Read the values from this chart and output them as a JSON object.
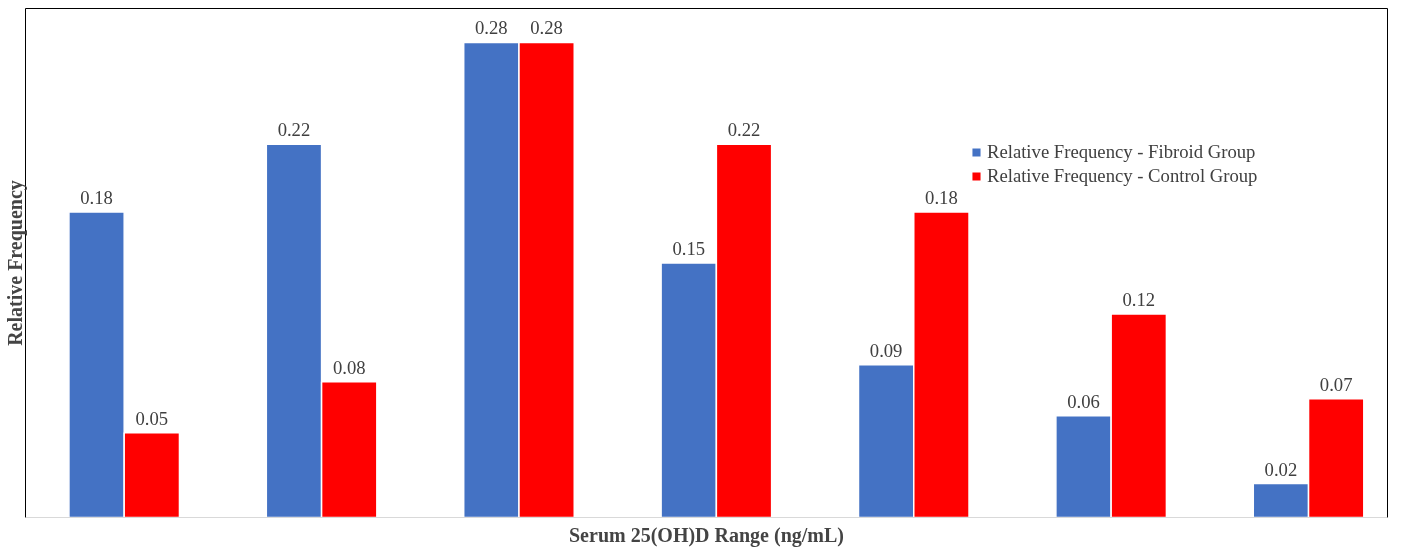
{
  "chart_data": {
    "type": "bar",
    "xlabel": "Serum 25(OH)D Range (ng/mL)",
    "ylabel": "Relative Frequency",
    "categories": [
      null,
      null,
      null,
      null,
      null,
      null,
      null
    ],
    "series": [
      {
        "name": "Relative Frequency - Fibroid Group",
        "color": "#4472c4",
        "values": [
          0.18,
          0.22,
          0.28,
          0.15,
          0.09,
          0.06,
          0.02
        ]
      },
      {
        "name": "Relative Frequency - Control Group",
        "color": "#ff0000",
        "values": [
          0.05,
          0.08,
          0.28,
          0.22,
          0.18,
          0.12,
          0.07
        ]
      }
    ],
    "ylim": [
      0,
      0.3
    ],
    "data_labels": true,
    "legend": "top right",
    "grid": false,
    "tick_labels": false
  }
}
